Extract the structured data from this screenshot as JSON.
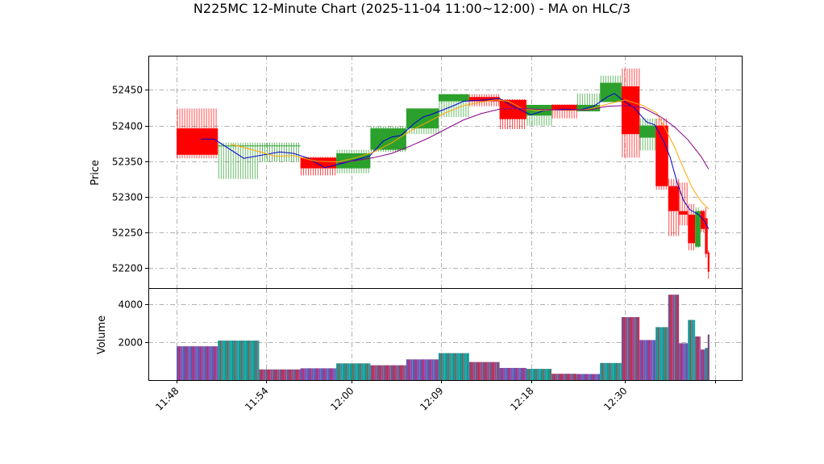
{
  "chart_data": {
    "title": "N225MC 12-Minute Chart (2025-11-04 11:00~12:00) - MA on HLC/3",
    "type": "candlestick",
    "price_panel": {
      "ylabel": "Price",
      "ylim": [
        52172,
        52498
      ],
      "yticks": [
        52200,
        52250,
        52300,
        52350,
        52400,
        52450
      ],
      "candles": [
        {
          "x0": 0.0,
          "x1": 4.6,
          "open": 52396,
          "high": 52424,
          "low": 52354,
          "close": 52359
        },
        {
          "x0": 4.6,
          "x1": 9.2,
          "open": 52372,
          "high": 52376,
          "low": 52325,
          "close": 52372
        },
        {
          "x0": 9.2,
          "x1": 13.8,
          "open": 52372,
          "high": 52376,
          "low": 52349,
          "close": 52372
        },
        {
          "x0": 13.8,
          "x1": 17.8,
          "open": 52355,
          "high": 52356,
          "low": 52330,
          "close": 52340
        },
        {
          "x0": 17.8,
          "x1": 21.6,
          "open": 52340,
          "high": 52366,
          "low": 52333,
          "close": 52361
        },
        {
          "x0": 21.6,
          "x1": 25.6,
          "open": 52366,
          "high": 52399,
          "low": 52363,
          "close": 52396
        },
        {
          "x0": 25.6,
          "x1": 29.2,
          "open": 52396,
          "high": 52424,
          "low": 52388,
          "close": 52424
        },
        {
          "x0": 29.2,
          "x1": 32.6,
          "open": 52434,
          "high": 52444,
          "low": 52412,
          "close": 52444
        },
        {
          "x0": 32.6,
          "x1": 36.0,
          "open": 52440,
          "high": 52444,
          "low": 52427,
          "close": 52434
        },
        {
          "x0": 36.0,
          "x1": 39.0,
          "open": 52436,
          "high": 52437,
          "low": 52395,
          "close": 52409
        },
        {
          "x0": 39.0,
          "x1": 41.8,
          "open": 52414,
          "high": 52429,
          "low": 52400,
          "close": 52429
        },
        {
          "x0": 41.8,
          "x1": 44.6,
          "open": 52429,
          "high": 52430,
          "low": 52410,
          "close": 52422
        },
        {
          "x0": 44.6,
          "x1": 47.2,
          "open": 52420,
          "high": 52445,
          "low": 52420,
          "close": 52429
        },
        {
          "x0": 47.2,
          "x1": 49.6,
          "open": 52433,
          "high": 52470,
          "low": 52433,
          "close": 52460
        },
        {
          "x0": 49.6,
          "x1": 51.6,
          "open": 52455,
          "high": 52480,
          "low": 52355,
          "close": 52388
        },
        {
          "x0": 51.6,
          "x1": 53.4,
          "open": 52383,
          "high": 52410,
          "low": 52365,
          "close": 52400
        },
        {
          "x0": 53.4,
          "x1": 54.8,
          "open": 52400,
          "high": 52410,
          "low": 52310,
          "close": 52315
        },
        {
          "x0": 54.8,
          "x1": 56.0,
          "open": 52315,
          "high": 52325,
          "low": 52245,
          "close": 52280
        },
        {
          "x0": 56.0,
          "x1": 57.0,
          "open": 52280,
          "high": 52320,
          "low": 52260,
          "close": 52275
        },
        {
          "x0": 57.0,
          "x1": 57.8,
          "open": 52275,
          "high": 52290,
          "low": 52225,
          "close": 52235
        },
        {
          "x0": 57.8,
          "x1": 58.4,
          "open": 52230,
          "high": 52285,
          "low": 52228,
          "close": 52280
        },
        {
          "x0": 58.4,
          "x1": 58.9,
          "open": 52280,
          "high": 52282,
          "low": 52250,
          "close": 52255
        },
        {
          "x0": 58.9,
          "x1": 59.2,
          "open": 52270,
          "high": 52285,
          "low": 52215,
          "close": 52220
        },
        {
          "x0": 59.2,
          "x1": 59.4,
          "open": 52222,
          "high": 52225,
          "low": 52185,
          "close": 52195
        }
      ],
      "ma_lines": [
        {
          "color": "#0000cc",
          "points": [
            [
              2.7,
              52381
            ],
            [
              4.2,
              52381
            ],
            [
              7.5,
              52354
            ],
            [
              11.5,
              52363
            ],
            [
              13.0,
              52361
            ],
            [
              14.5,
              52355
            ],
            [
              16.5,
              52341
            ],
            [
              18.5,
              52347
            ],
            [
              20.0,
              52352
            ],
            [
              21.5,
              52357
            ],
            [
              23.0,
              52378
            ],
            [
              24.0,
              52384
            ],
            [
              25.0,
              52386
            ],
            [
              26.5,
              52403
            ],
            [
              27.5,
              52412
            ],
            [
              28.5,
              52416
            ],
            [
              30.5,
              52426
            ],
            [
              32.0,
              52434
            ],
            [
              34.5,
              52436
            ],
            [
              36.0,
              52438
            ],
            [
              37.5,
              52427
            ],
            [
              39.5,
              52415
            ],
            [
              41.0,
              52421
            ],
            [
              43.0,
              52423
            ],
            [
              45.0,
              52422
            ],
            [
              46.5,
              52427
            ],
            [
              48.0,
              52440
            ],
            [
              48.8,
              52445
            ],
            [
              50.0,
              52433
            ],
            [
              51.0,
              52425
            ],
            [
              52.4,
              52405
            ],
            [
              53.3,
              52401
            ],
            [
              54.3,
              52378
            ],
            [
              55.0,
              52356
            ],
            [
              55.8,
              52320
            ],
            [
              56.5,
              52295
            ],
            [
              57.2,
              52282
            ],
            [
              58.2,
              52275
            ],
            [
              58.9,
              52265
            ],
            [
              59.3,
              52255
            ]
          ]
        },
        {
          "color": "#ffa500",
          "points": [
            [
              6.0,
              52374
            ],
            [
              8.5,
              52366
            ],
            [
              11.0,
              52357
            ],
            [
              13.0,
              52358
            ],
            [
              15.5,
              52350
            ],
            [
              18.0,
              52349
            ],
            [
              20.0,
              52355
            ],
            [
              22.0,
              52363
            ],
            [
              24.0,
              52376
            ],
            [
              26.0,
              52392
            ],
            [
              28.0,
              52405
            ],
            [
              30.0,
              52418
            ],
            [
              32.0,
              52428
            ],
            [
              34.0,
              52433
            ],
            [
              35.5,
              52436
            ],
            [
              37.0,
              52434
            ],
            [
              38.5,
              52424
            ],
            [
              40.0,
              52421
            ],
            [
              42.0,
              52422
            ],
            [
              44.0,
              52421
            ],
            [
              46.0,
              52423
            ],
            [
              48.0,
              52430
            ],
            [
              50.0,
              52436
            ],
            [
              52.0,
              52428
            ],
            [
              53.5,
              52418
            ],
            [
              54.5,
              52395
            ],
            [
              55.5,
              52370
            ],
            [
              56.5,
              52340
            ],
            [
              57.5,
              52312
            ],
            [
              58.5,
              52293
            ],
            [
              59.3,
              52283
            ]
          ]
        },
        {
          "color": "#8b008b",
          "points": [
            [
              18.0,
              52347
            ],
            [
              20.0,
              52351
            ],
            [
              22.0,
              52355
            ],
            [
              24.0,
              52361
            ],
            [
              26.0,
              52371
            ],
            [
              28.0,
              52382
            ],
            [
              30.0,
              52395
            ],
            [
              32.0,
              52408
            ],
            [
              34.0,
              52417
            ],
            [
              36.0,
              52423
            ],
            [
              38.0,
              52424
            ],
            [
              40.0,
              52423
            ],
            [
              42.0,
              52422
            ],
            [
              44.0,
              52422
            ],
            [
              46.0,
              52422
            ],
            [
              48.0,
              52427
            ],
            [
              50.0,
              52428
            ],
            [
              52.0,
              52425
            ],
            [
              54.0,
              52412
            ],
            [
              55.5,
              52398
            ],
            [
              57.0,
              52380
            ],
            [
              58.5,
              52356
            ],
            [
              59.3,
              52339
            ]
          ]
        }
      ]
    },
    "volume_panel": {
      "ylabel": "Volume",
      "ylim": [
        0,
        4850
      ],
      "yticks": [
        2000,
        4000
      ],
      "bars": [
        {
          "x0": 0.0,
          "x1": 4.6,
          "value": 1780
        },
        {
          "x0": 4.6,
          "x1": 9.2,
          "value": 2080
        },
        {
          "x0": 9.2,
          "x1": 13.8,
          "value": 560
        },
        {
          "x0": 13.8,
          "x1": 17.8,
          "value": 620
        },
        {
          "x0": 17.8,
          "x1": 21.6,
          "value": 880
        },
        {
          "x0": 21.6,
          "x1": 25.6,
          "value": 780
        },
        {
          "x0": 25.6,
          "x1": 29.2,
          "value": 1090
        },
        {
          "x0": 29.2,
          "x1": 32.6,
          "value": 1420
        },
        {
          "x0": 32.6,
          "x1": 36.0,
          "value": 950
        },
        {
          "x0": 36.0,
          "x1": 39.0,
          "value": 640
        },
        {
          "x0": 39.0,
          "x1": 41.8,
          "value": 590
        },
        {
          "x0": 41.8,
          "x1": 44.6,
          "value": 330
        },
        {
          "x0": 44.6,
          "x1": 47.2,
          "value": 320
        },
        {
          "x0": 47.2,
          "x1": 49.6,
          "value": 900
        },
        {
          "x0": 49.6,
          "x1": 51.6,
          "value": 3320
        },
        {
          "x0": 51.6,
          "x1": 53.4,
          "value": 2110
        },
        {
          "x0": 53.4,
          "x1": 54.8,
          "value": 2790
        },
        {
          "x0": 54.8,
          "x1": 56.0,
          "value": 4500
        },
        {
          "x0": 56.0,
          "x1": 57.0,
          "value": 1940
        },
        {
          "x0": 57.0,
          "x1": 57.8,
          "value": 3170
        },
        {
          "x0": 57.8,
          "x1": 58.4,
          "value": 2300
        },
        {
          "x0": 58.4,
          "x1": 58.9,
          "value": 1610
        },
        {
          "x0": 58.9,
          "x1": 59.2,
          "value": 1690
        },
        {
          "x0": 59.2,
          "x1": 59.4,
          "value": 2400
        }
      ]
    },
    "xaxis": {
      "xlim": [
        -3.15,
        63.0
      ],
      "ticks": [
        {
          "x": 0,
          "label": "11:48"
        },
        {
          "x": 10,
          "label": "11:54"
        },
        {
          "x": 19.5,
          "label": "12:00"
        },
        {
          "x": 29.5,
          "label": "12:09"
        },
        {
          "x": 39.5,
          "label": "12:18"
        },
        {
          "x": 50,
          "label": "12:30"
        },
        {
          "x": 60,
          "label": ""
        }
      ]
    },
    "colors": {
      "up": "#2ca02c",
      "down": "#ff0000",
      "volume_a": "#1f77b4",
      "volume_b": "#d62728",
      "volume_c": "#9467bd",
      "volume_d": "#17becf"
    }
  }
}
